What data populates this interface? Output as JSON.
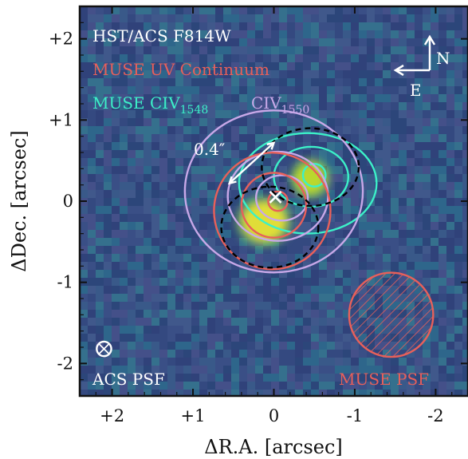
{
  "chart_data": {
    "type": "image-contour",
    "xlabel": "ΔR.A. [arcsec]",
    "ylabel": "ΔDec. [arcsec]",
    "xlim": [
      2.4,
      -2.4
    ],
    "ylim": [
      -2.4,
      2.4
    ],
    "x_ticks": [
      2,
      1,
      0,
      -1,
      -2
    ],
    "x_tick_labels": [
      "+2",
      "+1",
      "0",
      "-1",
      "-2"
    ],
    "y_ticks": [
      2,
      1,
      0,
      -1,
      -2
    ],
    "y_tick_labels": [
      "+2",
      "+1",
      "0",
      "-1",
      "-2"
    ],
    "background_image": "HST/ACS F814W",
    "layers": [
      {
        "name": "MUSE UV Continuum",
        "color": "#e8605a"
      },
      {
        "name": "MUSE CIV",
        "subscript": "1548",
        "color": "#3cf0c8"
      },
      {
        "name": "CIV",
        "subscript": "1550",
        "color": "#c8a8e8"
      }
    ],
    "contours": [
      {
        "layer": "MUSE CIV 1548",
        "color": "#3cf0c8",
        "center": [
          -0.42,
          0.22
        ],
        "rx": 0.85,
        "ry": 0.62,
        "angle": 0
      },
      {
        "layer": "MUSE CIV 1548",
        "color": "#3cf0c8",
        "center": [
          -0.46,
          0.3
        ],
        "rx": 0.46,
        "ry": 0.37,
        "angle": 0
      },
      {
        "layer": "MUSE CIV 1548",
        "color": "#3cf0c8",
        "center": [
          -0.5,
          0.32
        ],
        "rx": 0.14,
        "ry": 0.14,
        "angle": 0
      },
      {
        "layer": "CIV 1550",
        "color": "#c8a8e8",
        "center": [
          0.0,
          0.12
        ],
        "rx": 1.1,
        "ry": 1.0,
        "angle": 0
      },
      {
        "layer": "CIV 1550",
        "color": "#c8a8e8",
        "center": [
          -0.05,
          0.06
        ],
        "rx": 0.62,
        "ry": 0.55,
        "angle": 0
      },
      {
        "layer": "CIV 1550",
        "color": "#c8a8e8",
        "center": [
          -0.1,
          0.04
        ],
        "rx": 0.32,
        "ry": 0.28,
        "angle": 0
      },
      {
        "layer": "MUSE UV Continuum",
        "color": "#e8605a",
        "center": [
          0.02,
          -0.12
        ],
        "rx": 0.72,
        "ry": 0.72,
        "angle": 0
      },
      {
        "layer": "MUSE UV Continuum",
        "color": "#e8605a",
        "center": [
          0.0,
          -0.05
        ],
        "rx": 0.4,
        "ry": 0.4,
        "angle": 0
      },
      {
        "layer": "MUSE UV Continuum",
        "color": "#e8605a",
        "center": [
          -0.05,
          0.0
        ],
        "rx": 0.12,
        "ry": 0.12,
        "angle": 0
      },
      {
        "layer": "dashed",
        "color": "#000000",
        "center": [
          0.05,
          -0.32
        ],
        "rx": 0.6,
        "ry": 0.5,
        "angle": 0,
        "dashed": true
      },
      {
        "layer": "dashed",
        "color": "#000000",
        "center": [
          -0.45,
          0.42
        ],
        "rx": 0.6,
        "ry": 0.48,
        "angle": 0,
        "dashed": true
      }
    ],
    "bright_sources": [
      {
        "center": [
          0.12,
          -0.25
        ],
        "rx": 0.28,
        "ry": 0.25,
        "color": "#e8e234"
      },
      {
        "center": [
          -0.45,
          0.28
        ],
        "rx": 0.2,
        "ry": 0.2,
        "color": "#c0dc2c"
      }
    ],
    "centroid_marker": {
      "x": -0.02,
      "y": 0.05,
      "symbol": "×"
    },
    "scale_bar": {
      "label": "0.4″",
      "x1": 0.55,
      "y1": 0.22,
      "x2": 0.0,
      "y2": 0.72
    },
    "psf": [
      {
        "label": "ACS PSF",
        "center": [
          2.1,
          -1.82
        ],
        "r": 0.09,
        "color": "#ffffff"
      },
      {
        "label": "MUSE PSF",
        "center": [
          -1.45,
          -1.4
        ],
        "r": 0.52,
        "color": "#e8605a",
        "hatched": true
      }
    ],
    "compass": {
      "north": "N",
      "east": "E"
    }
  },
  "overlay": {
    "title": "HST/ACS F814W",
    "uv_label": "MUSE UV Continuum",
    "civ1548_label": "MUSE CIV",
    "civ1548_sub": "1548",
    "civ1550_label": "CIV",
    "civ1550_sub": "1550",
    "scale_label": "0.4″",
    "acs_psf_label": "ACS PSF",
    "muse_psf_label": "MUSE PSF",
    "north_label": "N",
    "east_label": "E"
  },
  "colors": {
    "background": "#3b4f86",
    "uv": "#e8605a",
    "civ1548": "#3cf0c8",
    "civ1550": "#c8a8e8",
    "white": "#ffffff"
  }
}
